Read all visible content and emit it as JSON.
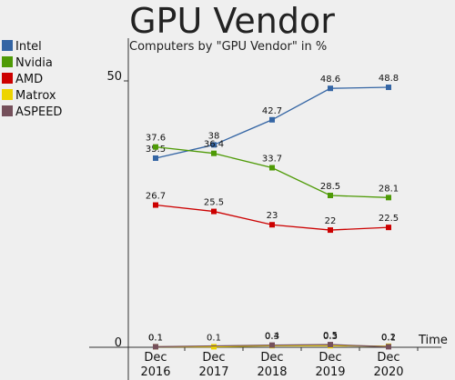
{
  "chart_data": {
    "type": "line",
    "title": "GPU Vendor",
    "subtitle": "Computers by \"GPU Vendor\" in %",
    "xlabel": "Time",
    "ylabel": "",
    "categories": [
      "Dec\n2016",
      "Dec\n2017",
      "Dec\n2018",
      "Dec\n2019",
      "Dec\n2020"
    ],
    "ylim": [
      0,
      55
    ],
    "yticks": [
      0,
      50
    ],
    "ytick_labels": [
      "0",
      "50"
    ],
    "grid": false,
    "legend_position": "left",
    "series": [
      {
        "name": "Intel",
        "color": "#3465a4",
        "values": [
          35.5,
          38,
          42.7,
          48.6,
          48.8
        ],
        "labels": [
          "35.5",
          "38",
          "42.7",
          "48.6",
          "48.8"
        ]
      },
      {
        "name": "Nvidia",
        "color": "#4e9a06",
        "values": [
          37.6,
          36.4,
          33.7,
          28.5,
          28.1
        ],
        "labels": [
          "37.6",
          "36.4",
          "33.7",
          "28.5",
          "28.1"
        ]
      },
      {
        "name": "AMD",
        "color": "#cc0000",
        "values": [
          26.7,
          25.5,
          23,
          22,
          22.5
        ],
        "labels": [
          "26.7",
          "25.5",
          "23",
          "22",
          "22.5"
        ]
      },
      {
        "name": "Matrox",
        "color": "#edd400",
        "values": [
          0.1,
          0.1,
          0.3,
          0.3,
          0.2
        ],
        "labels": [
          "0.1",
          "0.1",
          "0.3",
          "0.3",
          "0.2"
        ]
      },
      {
        "name": "ASPEED",
        "color": "#75505b",
        "values": [
          0.1,
          null,
          0.4,
          0.5,
          0.1
        ],
        "labels": [
          "0.1",
          "",
          "0.4",
          "0.5",
          "0.1"
        ]
      }
    ]
  }
}
